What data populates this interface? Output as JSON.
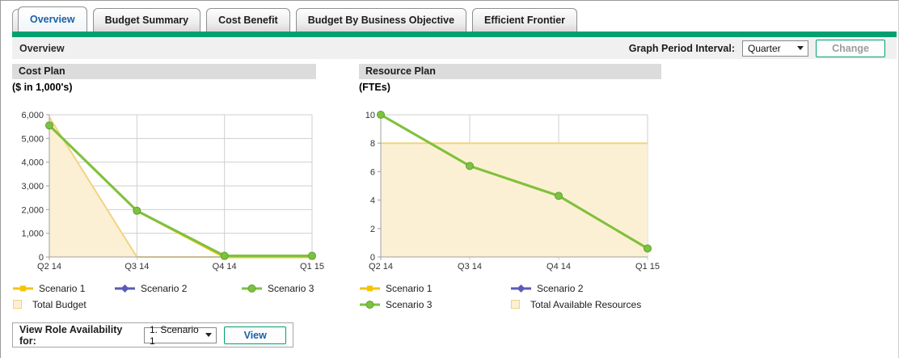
{
  "tabs": [
    {
      "label": "Overview",
      "selected": true
    },
    {
      "label": "Budget Summary",
      "selected": false
    },
    {
      "label": "Cost Benefit",
      "selected": false
    },
    {
      "label": "Budget By Business Objective",
      "selected": false
    },
    {
      "label": "Efficient Frontier",
      "selected": false
    }
  ],
  "header": {
    "title": "Overview",
    "graph_period_label": "Graph Period Interval:",
    "graph_period_value": "Quarter",
    "change_button": "Change"
  },
  "view_role": {
    "label": "View Role Availability for:",
    "value": "1. Scenario 1",
    "button": "View"
  },
  "colors": {
    "accent_teal": "#00A070",
    "tab_active_text": "#1A61A8",
    "scenario1": "#F5C400",
    "scenario2": "#5B5BB7",
    "scenario3": "#7DC142",
    "budget_fill": "#FBF0D4",
    "budget_border": "#F2D382",
    "grid_line": "#CFCFCF",
    "axis_line": "#A0A0A0"
  },
  "chart_data": [
    {
      "id": "cost-plan",
      "type": "line",
      "title": "Cost Plan",
      "unit_label": "($ in 1,000's)",
      "categories": [
        "Q2 14",
        "Q3 14",
        "Q4 14",
        "Q1 15"
      ],
      "ylim": [
        0,
        6000
      ],
      "yticks": [
        0,
        1000,
        2000,
        3000,
        4000,
        5000,
        6000
      ],
      "grid": true,
      "legend_position": "bottom",
      "legend_columns": 3,
      "series": [
        {
          "name": "Scenario 1",
          "kind": "line",
          "marker": "square",
          "color": "#F5C400",
          "values": [
            5550,
            1950,
            0,
            0
          ]
        },
        {
          "name": "Scenario 2",
          "kind": "line",
          "marker": "diamond",
          "color": "#5B5BB7",
          "values": null
        },
        {
          "name": "Scenario 3",
          "kind": "line",
          "marker": "circle",
          "color": "#7DC142",
          "values": [
            5550,
            1950,
            50,
            50
          ]
        },
        {
          "name": "Total Budget",
          "kind": "area",
          "fill": "#FBF0D4",
          "color": "#F2D382",
          "values": [
            5900,
            0,
            0,
            0
          ]
        }
      ]
    },
    {
      "id": "resource-plan",
      "type": "line",
      "title": "Resource Plan",
      "unit_label": "(FTEs)",
      "categories": [
        "Q2 14",
        "Q3 14",
        "Q4 14",
        "Q1 15"
      ],
      "ylim": [
        0,
        10
      ],
      "yticks": [
        0,
        2,
        4,
        6,
        8,
        10
      ],
      "grid": true,
      "legend_position": "bottom",
      "legend_columns": 2,
      "series": [
        {
          "name": "Scenario 1",
          "kind": "line",
          "marker": "square",
          "color": "#F5C400",
          "values": [
            10,
            6.4,
            4.3,
            0.6
          ]
        },
        {
          "name": "Scenario 2",
          "kind": "line",
          "marker": "diamond",
          "color": "#5B5BB7",
          "values": null
        },
        {
          "name": "Scenario 3",
          "kind": "line",
          "marker": "circle",
          "color": "#7DC142",
          "values": [
            10,
            6.4,
            4.3,
            0.6
          ]
        },
        {
          "name": "Total Available Resources",
          "kind": "area",
          "fill": "#FBF0D4",
          "color": "#F2D382",
          "values": [
            8,
            8,
            8,
            8
          ]
        }
      ]
    }
  ]
}
